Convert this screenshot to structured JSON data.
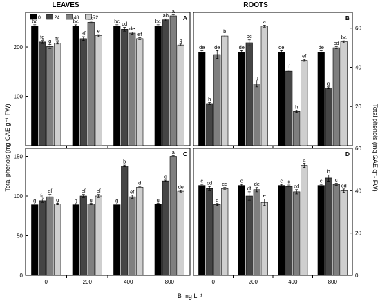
{
  "headers": {
    "left": "LEAVES",
    "right": "ROOTS"
  },
  "ylabel_left": "Total phenols (mg GAE g⁻¹ FW)",
  "ylabel_right": "Total phenols (mg GAE g⁻¹ FW)",
  "xlabel": "B mg L⁻¹",
  "legend": [
    "0",
    "24",
    "48",
    "72"
  ],
  "colors": [
    "#000000",
    "#454545",
    "#7f7f7f",
    "#cfcfcf"
  ],
  "chart_data": [
    {
      "panel": "A",
      "type": "bar",
      "axis_side": "left",
      "categories": [
        "0",
        "200",
        "400",
        "800"
      ],
      "ylim": [
        0,
        270
      ],
      "yticks": [
        100,
        200
      ],
      "series": [
        {
          "name": "0",
          "values": [
            243,
            243,
            243,
            243
          ],
          "errors": [
            2,
            2,
            2,
            2
          ],
          "letters": [
            "bc",
            "bc",
            "bc",
            "bc"
          ]
        },
        {
          "name": "24",
          "values": [
            210,
            217,
            236,
            255
          ],
          "errors": [
            3,
            4,
            4,
            2
          ],
          "letters": [
            "fg",
            "ef",
            "cd",
            "ab"
          ]
        },
        {
          "name": "48",
          "values": [
            201,
            250,
            228,
            263
          ],
          "errors": [
            4,
            2,
            2,
            2
          ],
          "letters": [
            "g",
            "bc",
            "de",
            "a"
          ]
        },
        {
          "name": "72",
          "values": [
            208,
            223,
            217,
            204
          ],
          "errors": [
            2,
            2,
            2,
            2
          ],
          "letters": [
            "fg",
            "e",
            "ef",
            "g"
          ]
        }
      ]
    },
    {
      "panel": "B",
      "type": "bar",
      "axis_side": "right",
      "categories": [
        "0",
        "200",
        "400",
        "800"
      ],
      "ylim": [
        0,
        68
      ],
      "yticks": [
        20,
        40,
        60
      ],
      "series": [
        {
          "name": "0",
          "values": [
            47.5,
            47.5,
            47.5,
            47.5
          ],
          "errors": [
            1,
            1,
            1,
            1
          ],
          "letters": [
            "de",
            "de",
            "de",
            "de"
          ]
        },
        {
          "name": "24",
          "values": [
            21.5,
            52.5,
            38,
            29.5
          ],
          "errors": [
            0.5,
            1.5,
            0.5,
            0.5
          ],
          "letters": [
            "h",
            "bc",
            "f",
            "g"
          ]
        },
        {
          "name": "48",
          "values": [
            46.5,
            31.5,
            17.5,
            50
          ],
          "errors": [
            2,
            1.5,
            0.5,
            0.5
          ],
          "letters": [
            "de",
            "g",
            "h",
            "cd"
          ]
        },
        {
          "name": "72",
          "values": [
            56,
            61,
            43.5,
            53
          ],
          "errors": [
            0.5,
            0.5,
            0.5,
            0.5
          ],
          "letters": [
            "b",
            "a",
            "ef",
            "bc"
          ]
        }
      ]
    },
    {
      "panel": "C",
      "type": "bar",
      "axis_side": "left",
      "categories": [
        "0",
        "200",
        "400",
        "800"
      ],
      "ylim": [
        0,
        160
      ],
      "yticks": [
        0,
        50,
        100,
        150
      ],
      "series": [
        {
          "name": "0",
          "values": [
            89,
            89,
            89,
            90
          ],
          "errors": [
            1,
            1,
            1,
            1
          ],
          "letters": [
            "g",
            "g",
            "g",
            "g"
          ]
        },
        {
          "name": "24",
          "values": [
            94,
            100,
            138,
            119
          ],
          "errors": [
            2,
            2,
            1,
            1
          ],
          "letters": [
            "fg",
            "ef",
            "b",
            "c"
          ]
        },
        {
          "name": "48",
          "values": [
            99,
            90,
            99,
            150
          ],
          "errors": [
            3,
            1,
            2,
            1
          ],
          "letters": [
            "ef",
            "g",
            "ef",
            "a"
          ]
        },
        {
          "name": "72",
          "values": [
            90,
            100,
            111,
            106
          ],
          "errors": [
            1,
            2,
            1,
            1
          ],
          "letters": [
            "g",
            "ef",
            "d",
            "de"
          ]
        }
      ]
    },
    {
      "panel": "D",
      "type": "bar",
      "axis_side": "right",
      "categories": [
        "0",
        "200",
        "400",
        "800"
      ],
      "ylim": [
        0,
        60
      ],
      "yticks": [
        0,
        20,
        40,
        60
      ],
      "series": [
        {
          "name": "0",
          "values": [
            42.5,
            42.5,
            42.5,
            42.5
          ],
          "errors": [
            0.5,
            0.5,
            0.5,
            0.5
          ],
          "letters": [
            "c",
            "c",
            "c",
            "c"
          ]
        },
        {
          "name": "24",
          "values": [
            41,
            37.5,
            42,
            46
          ],
          "errors": [
            1,
            2,
            0.7,
            1.5
          ],
          "letters": [
            "cd",
            "df",
            "c",
            "b"
          ]
        },
        {
          "name": "48",
          "values": [
            33.5,
            40.5,
            39.5,
            43
          ],
          "errors": [
            0.5,
            1,
            1,
            0.5
          ],
          "letters": [
            "e",
            "de",
            "cd",
            "c"
          ]
        },
        {
          "name": "72",
          "values": [
            41,
            34.5,
            52,
            40
          ],
          "errors": [
            0.5,
            1.5,
            1,
            0.8
          ],
          "letters": [
            "cd",
            "e",
            "a",
            "cd"
          ]
        }
      ]
    }
  ]
}
